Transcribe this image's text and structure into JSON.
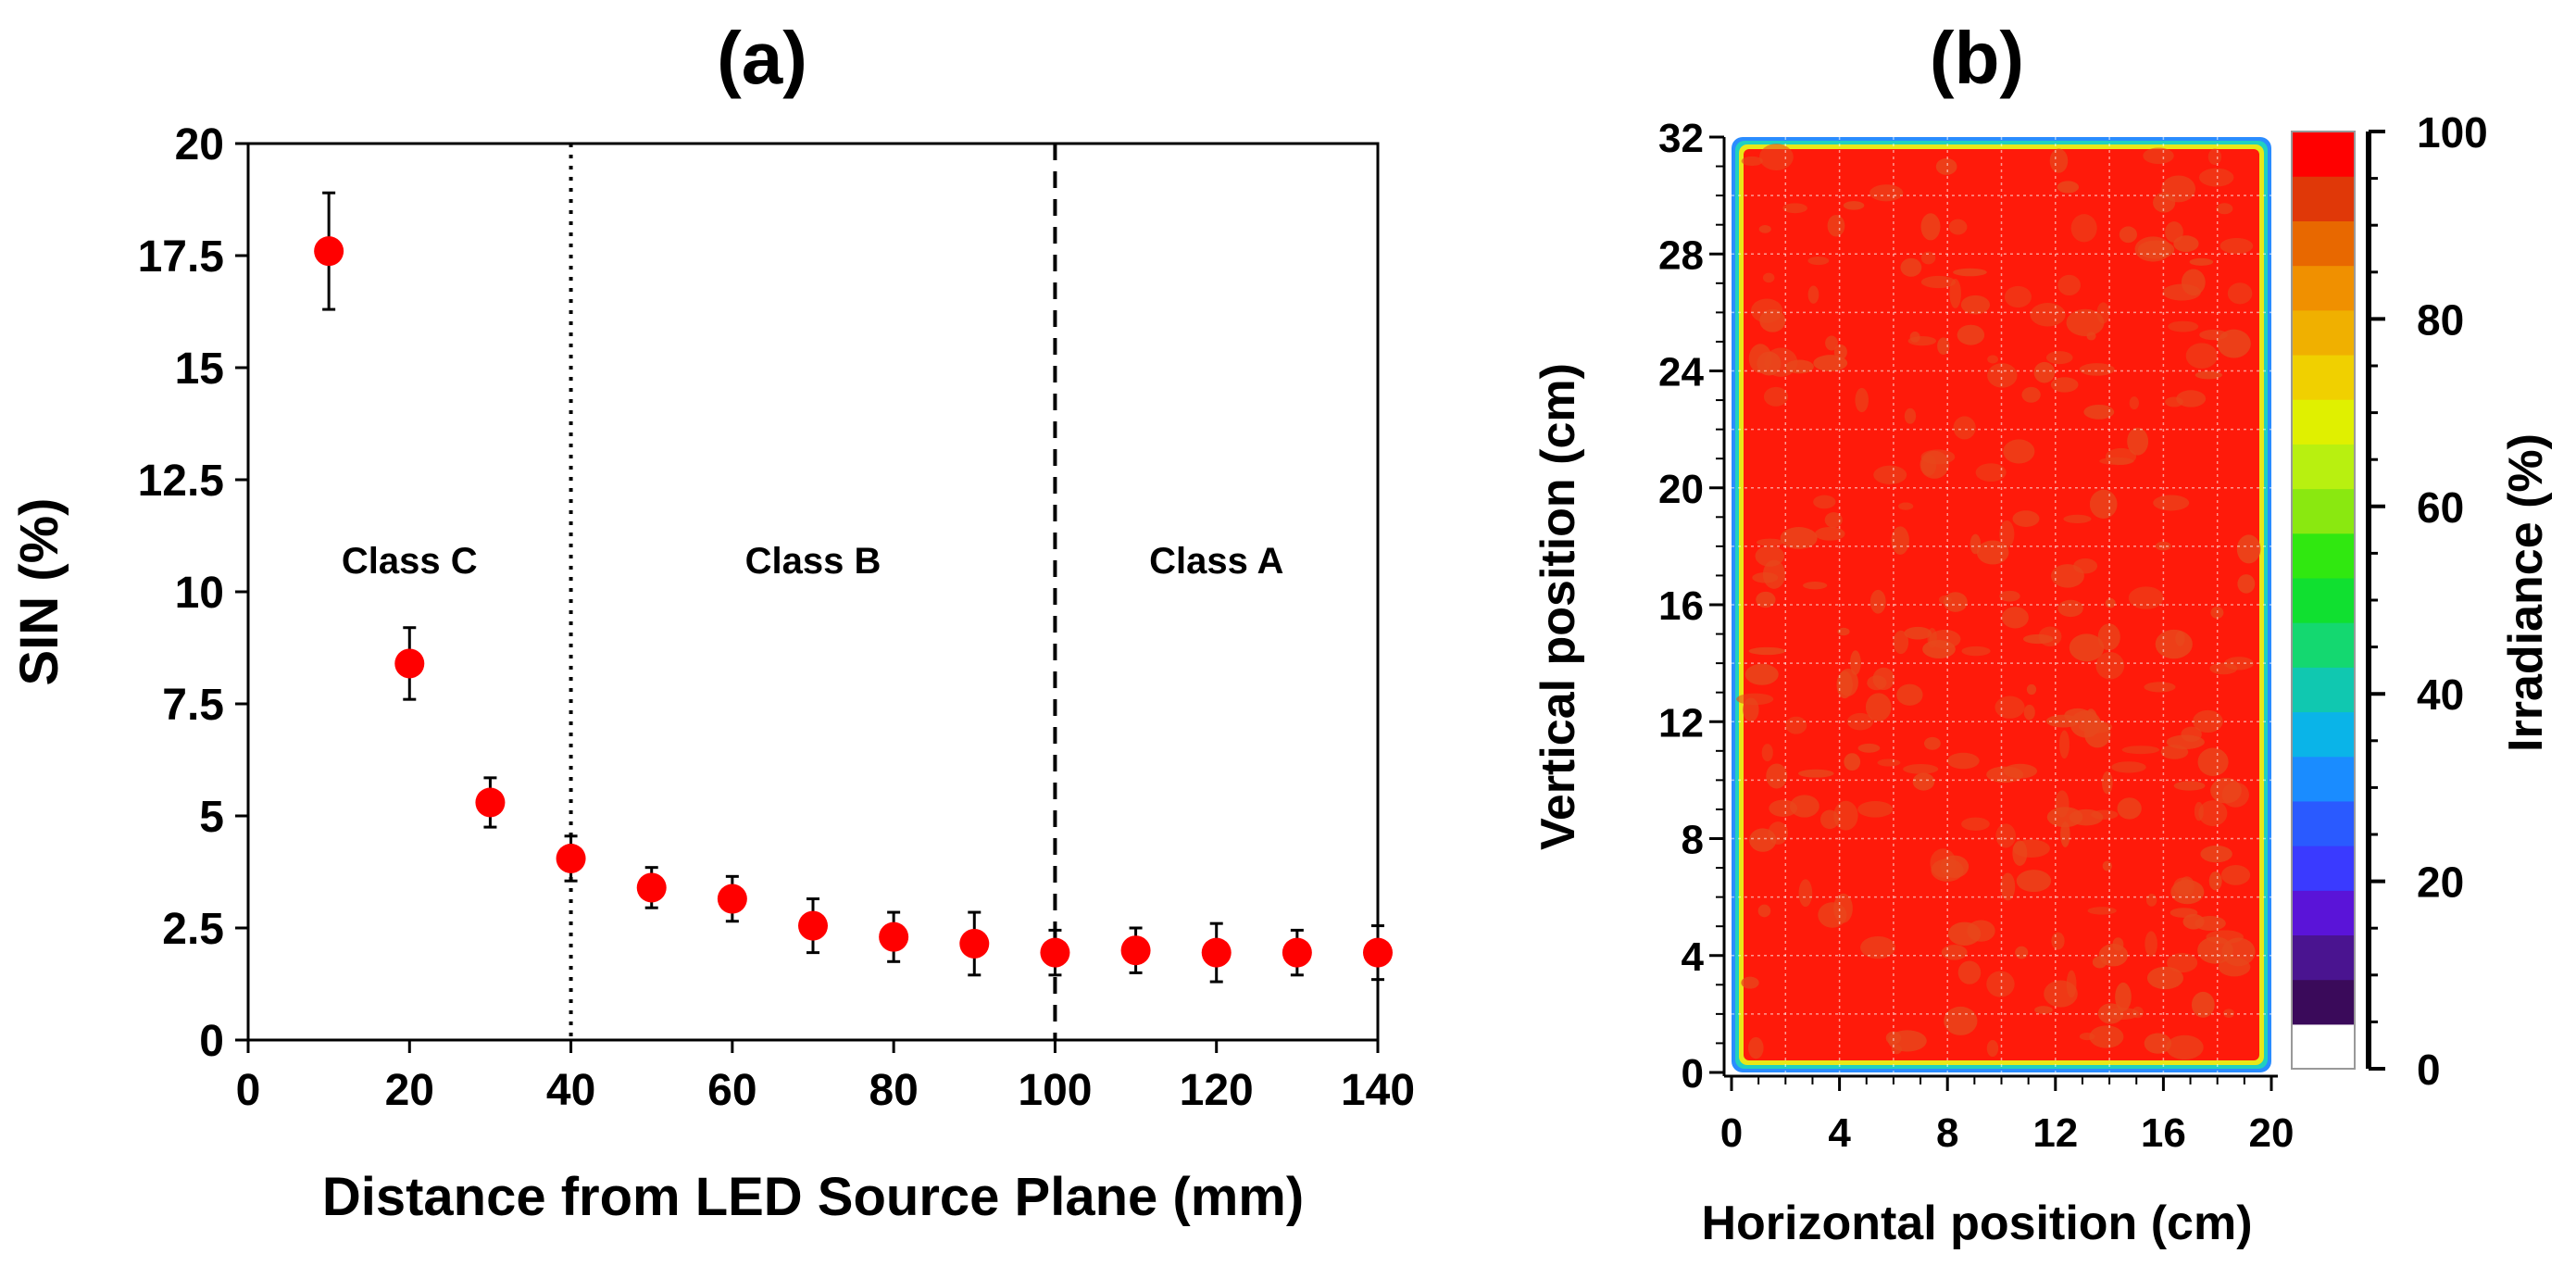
{
  "chart_data": [
    {
      "panel": "(a)",
      "type": "scatter",
      "title": "(a)",
      "xlabel": "Distance from LED Source Plane (mm)",
      "ylabel": "SIN (%)",
      "xlim": [
        0,
        140
      ],
      "ylim": [
        0,
        20
      ],
      "x_ticks": [
        "0",
        "20",
        "40",
        "60",
        "80",
        "100",
        "120",
        "140"
      ],
      "y_ticks": [
        "0",
        "2.5",
        "5",
        "7.5",
        "10",
        "12.5",
        "15",
        "17.5",
        "20"
      ],
      "x_tick_values": [
        0,
        20,
        40,
        60,
        80,
        100,
        120,
        140
      ],
      "y_tick_values": [
        0,
        2.5,
        5,
        7.5,
        10,
        12.5,
        15,
        17.5,
        20
      ],
      "series": [
        {
          "name": "SIN",
          "color": "#ff0000",
          "x": [
            10,
            20,
            30,
            40,
            50,
            60,
            70,
            80,
            90,
            100,
            110,
            120,
            130,
            140
          ],
          "y": [
            17.6,
            8.4,
            5.3,
            4.05,
            3.4,
            3.15,
            2.55,
            2.3,
            2.15,
            1.95,
            2.0,
            1.95,
            1.95,
            1.95
          ],
          "error": [
            1.3,
            0.8,
            0.55,
            0.5,
            0.45,
            0.5,
            0.6,
            0.55,
            0.7,
            0.5,
            0.5,
            0.65,
            0.5,
            0.6
          ]
        }
      ],
      "vlines": [
        {
          "x": 40,
          "style": "dotted"
        },
        {
          "x": 100,
          "style": "dashed"
        }
      ],
      "annotations": [
        {
          "text": "Class C",
          "x": 20,
          "y": 10.7
        },
        {
          "text": "Class B",
          "x": 70,
          "y": 10.7
        },
        {
          "text": "Class A",
          "x": 120,
          "y": 10.7
        }
      ]
    },
    {
      "panel": "(b)",
      "type": "heatmap",
      "title": "(b)",
      "xlabel": "Horizontal position (cm)",
      "ylabel": "Vertical position (cm)",
      "colorbar_label": "Irradiance (%)",
      "xlim": [
        0,
        20
      ],
      "ylim": [
        0,
        32
      ],
      "x_ticks": [
        "0",
        "4",
        "8",
        "12",
        "16",
        "20"
      ],
      "y_ticks": [
        "0",
        "4",
        "8",
        "12",
        "16",
        "20",
        "24",
        "28",
        "32"
      ],
      "x_tick_values": [
        0,
        4,
        8,
        12,
        16,
        20
      ],
      "y_tick_values": [
        0,
        4,
        8,
        12,
        16,
        20,
        24,
        28,
        32
      ],
      "colorbar_ticks": [
        "0",
        "20",
        "40",
        "60",
        "80",
        "100"
      ],
      "colorbar_tick_values": [
        0,
        20,
        40,
        60,
        80,
        100
      ],
      "colorbar_range": [
        0,
        100
      ],
      "colorbar_colors": [
        "#ffffff",
        "#3a0a5a",
        "#4a1490",
        "#5a14d8",
        "#3a3aff",
        "#2a5aff",
        "#1a8cff",
        "#0ab4e8",
        "#10c8b0",
        "#14d870",
        "#10e030",
        "#30e810",
        "#8ae810",
        "#b8f010",
        "#e0f000",
        "#f0d000",
        "#f0b000",
        "#f09000",
        "#e86800",
        "#e03808",
        "#ff0000"
      ],
      "field_colors": {
        "high": "#ff1a0a",
        "patch": "#e8481c",
        "edge_outer": "#2a8cff",
        "edge_mid": "#20d0c0",
        "edge_inner": "#e8e818"
      },
      "summary": {
        "interior_irradiance_min": 95,
        "interior_irradiance_max": 100
      }
    }
  ]
}
